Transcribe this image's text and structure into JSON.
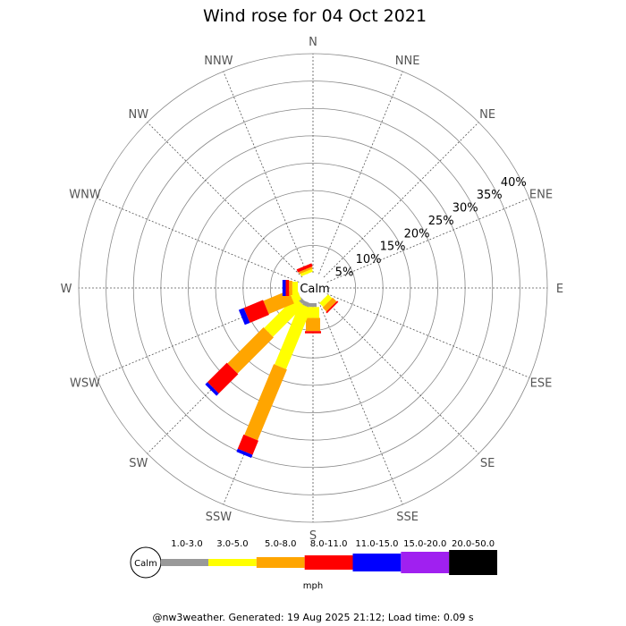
{
  "chart_data": {
    "type": "windrose",
    "title": "Wind rose for 04 Oct 2021",
    "calm_label": "Calm",
    "directions": [
      "N",
      "NNE",
      "NE",
      "ENE",
      "E",
      "ESE",
      "SE",
      "SSE",
      "S",
      "SSW",
      "SW",
      "WSW",
      "W",
      "WNW",
      "NW",
      "NNW"
    ],
    "radial_ticks": [
      "5%",
      "10%",
      "15%",
      "20%",
      "25%",
      "30%",
      "35%",
      "40%"
    ],
    "radial_max": 40,
    "unit": "mph",
    "speed_bins": [
      {
        "label": "1.0-3.0",
        "color": "#999999"
      },
      {
        "label": "3.0-5.0",
        "color": "#ffff00"
      },
      {
        "label": "5.0-8.0",
        "color": "#ffa500"
      },
      {
        "label": "8.0-11.0",
        "color": "#ff0000"
      },
      {
        "label": "11.0-15.0",
        "color": "#0000ff"
      },
      {
        "label": "15.0-20.0",
        "color": "#a020f0"
      },
      {
        "label": "20.0-50.0",
        "color": "#000000"
      }
    ],
    "data": [
      {
        "direction": "N",
        "values": [
          0,
          0,
          0,
          0,
          0,
          0,
          0
        ]
      },
      {
        "direction": "NNE",
        "values": [
          0,
          0,
          0,
          0,
          0,
          0,
          0
        ]
      },
      {
        "direction": "NE",
        "values": [
          0,
          0,
          0,
          0,
          0,
          0,
          0
        ]
      },
      {
        "direction": "ENE",
        "values": [
          0,
          0,
          0,
          0,
          0,
          0,
          0
        ]
      },
      {
        "direction": "E",
        "values": [
          0,
          0,
          0,
          0,
          0,
          0,
          0
        ]
      },
      {
        "direction": "ESE",
        "values": [
          0,
          0,
          0,
          0,
          0,
          0,
          0
        ]
      },
      {
        "direction": "SE",
        "values": [
          0,
          1.0,
          1.0,
          0.3,
          0,
          0,
          0
        ]
      },
      {
        "direction": "SSE",
        "values": [
          0,
          0,
          0,
          0,
          0,
          0,
          0
        ]
      },
      {
        "direction": "S",
        "values": [
          0.7,
          2.0,
          2.4,
          0.4,
          0,
          0,
          0
        ]
      },
      {
        "direction": "SSW",
        "values": [
          0.8,
          12.0,
          14.0,
          2.8,
          0.6,
          0,
          0
        ]
      },
      {
        "direction": "SW",
        "values": [
          0.7,
          8.0,
          9.3,
          5.0,
          0.6,
          0,
          0
        ]
      },
      {
        "direction": "WSW",
        "values": [
          0,
          1.5,
          5.0,
          3.8,
          1.0,
          0,
          0
        ]
      },
      {
        "direction": "W",
        "values": [
          0,
          1.0,
          0.6,
          0.6,
          0.6,
          0,
          0
        ]
      },
      {
        "direction": "WNW",
        "values": [
          0,
          0,
          0,
          0,
          0,
          0,
          0
        ]
      },
      {
        "direction": "NW",
        "values": [
          0,
          0,
          0,
          0,
          0,
          0,
          0
        ]
      },
      {
        "direction": "NNW",
        "values": [
          0,
          0.5,
          0.4,
          0.6,
          0,
          0,
          0
        ]
      }
    ]
  },
  "footer": "@nw3weather. Generated: 19 Aug 2025 21:12; Load time: 0.09 s"
}
